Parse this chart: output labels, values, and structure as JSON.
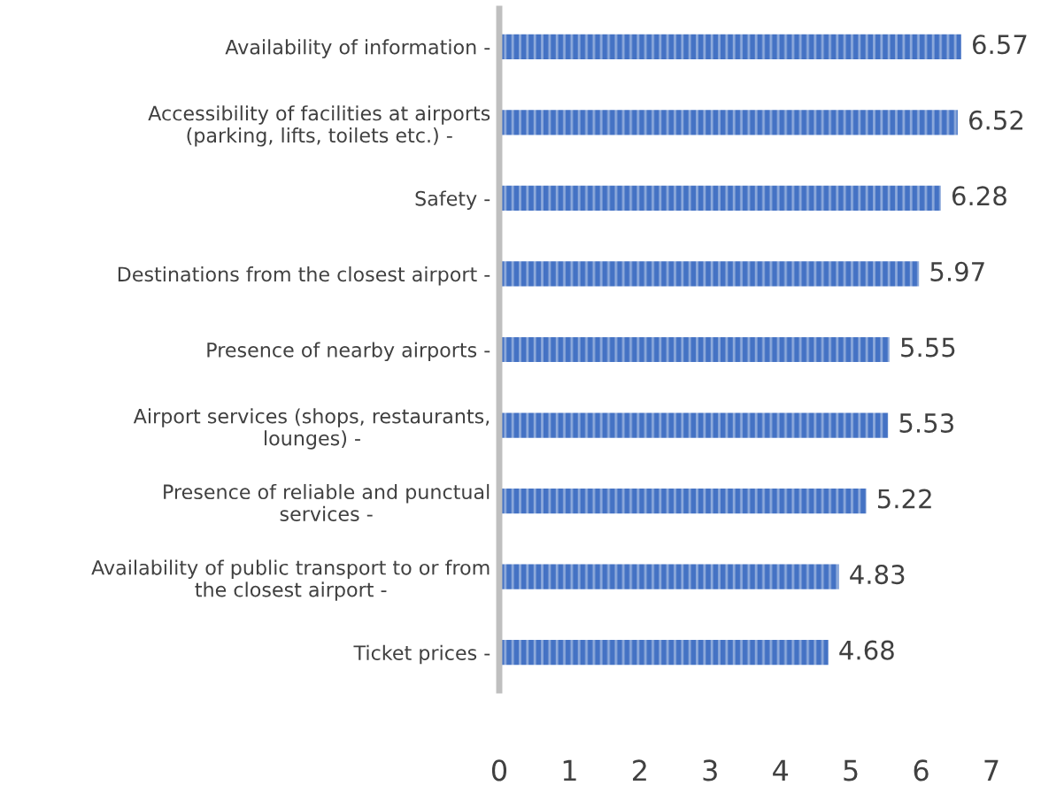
{
  "chart_data": {
    "type": "bar",
    "orientation": "horizontal",
    "categories": [
      "Availability of information -",
      "Accessibility of facilities at airports\n(parking, lifts, toilets etc.) -",
      "Safety -",
      "Destinations from the closest airport -",
      "Presence of nearby airports -",
      "Airport services (shops, restaurants,\nlounges) -",
      "Presence of reliable and punctual\nservices -",
      "Availability of public transport to or from\nthe closest airport -",
      "Ticket prices -"
    ],
    "values": [
      6.57,
      6.52,
      6.28,
      5.97,
      5.55,
      5.53,
      5.22,
      4.83,
      4.68
    ],
    "color": "#4472c4",
    "data_labels": true,
    "xlim": [
      0,
      7
    ],
    "xticks": [
      0,
      1,
      2,
      3,
      4,
      5,
      6,
      7
    ],
    "grid": false
  }
}
